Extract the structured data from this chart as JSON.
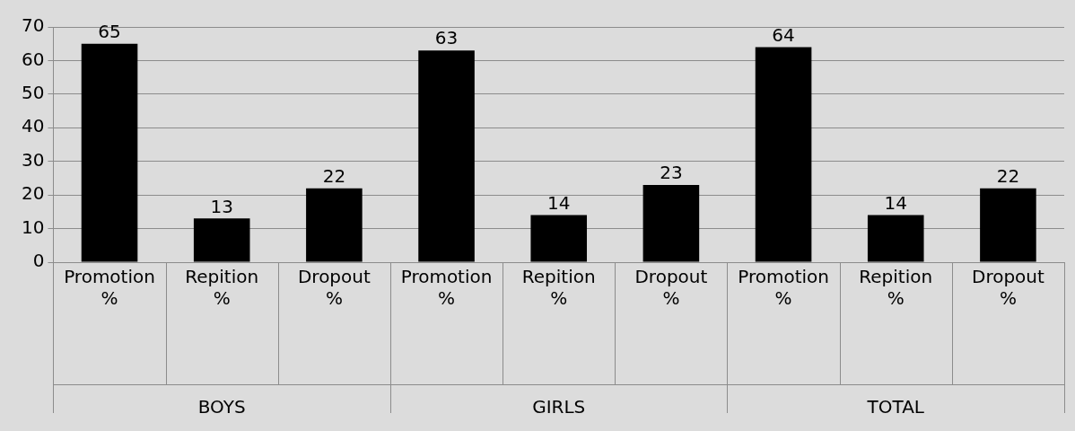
{
  "chart_data": {
    "type": "bar",
    "categories": [
      "Promotion %",
      "Repition %",
      "Dropout %",
      "Promotion %",
      "Repition %",
      "Dropout %",
      "Promotion %",
      "Repition %",
      "Dropout %"
    ],
    "values": [
      65,
      13,
      22,
      63,
      14,
      23,
      64,
      14,
      22
    ],
    "color": "#000000",
    "ylim": [
      0,
      70
    ],
    "yticks": [
      0,
      10,
      20,
      30,
      40,
      50,
      60,
      70
    ],
    "grid": "y",
    "legend": false,
    "data_labels": true,
    "annotations": [
      "BOYS",
      "GIRLS",
      "TOTAL"
    ]
  }
}
